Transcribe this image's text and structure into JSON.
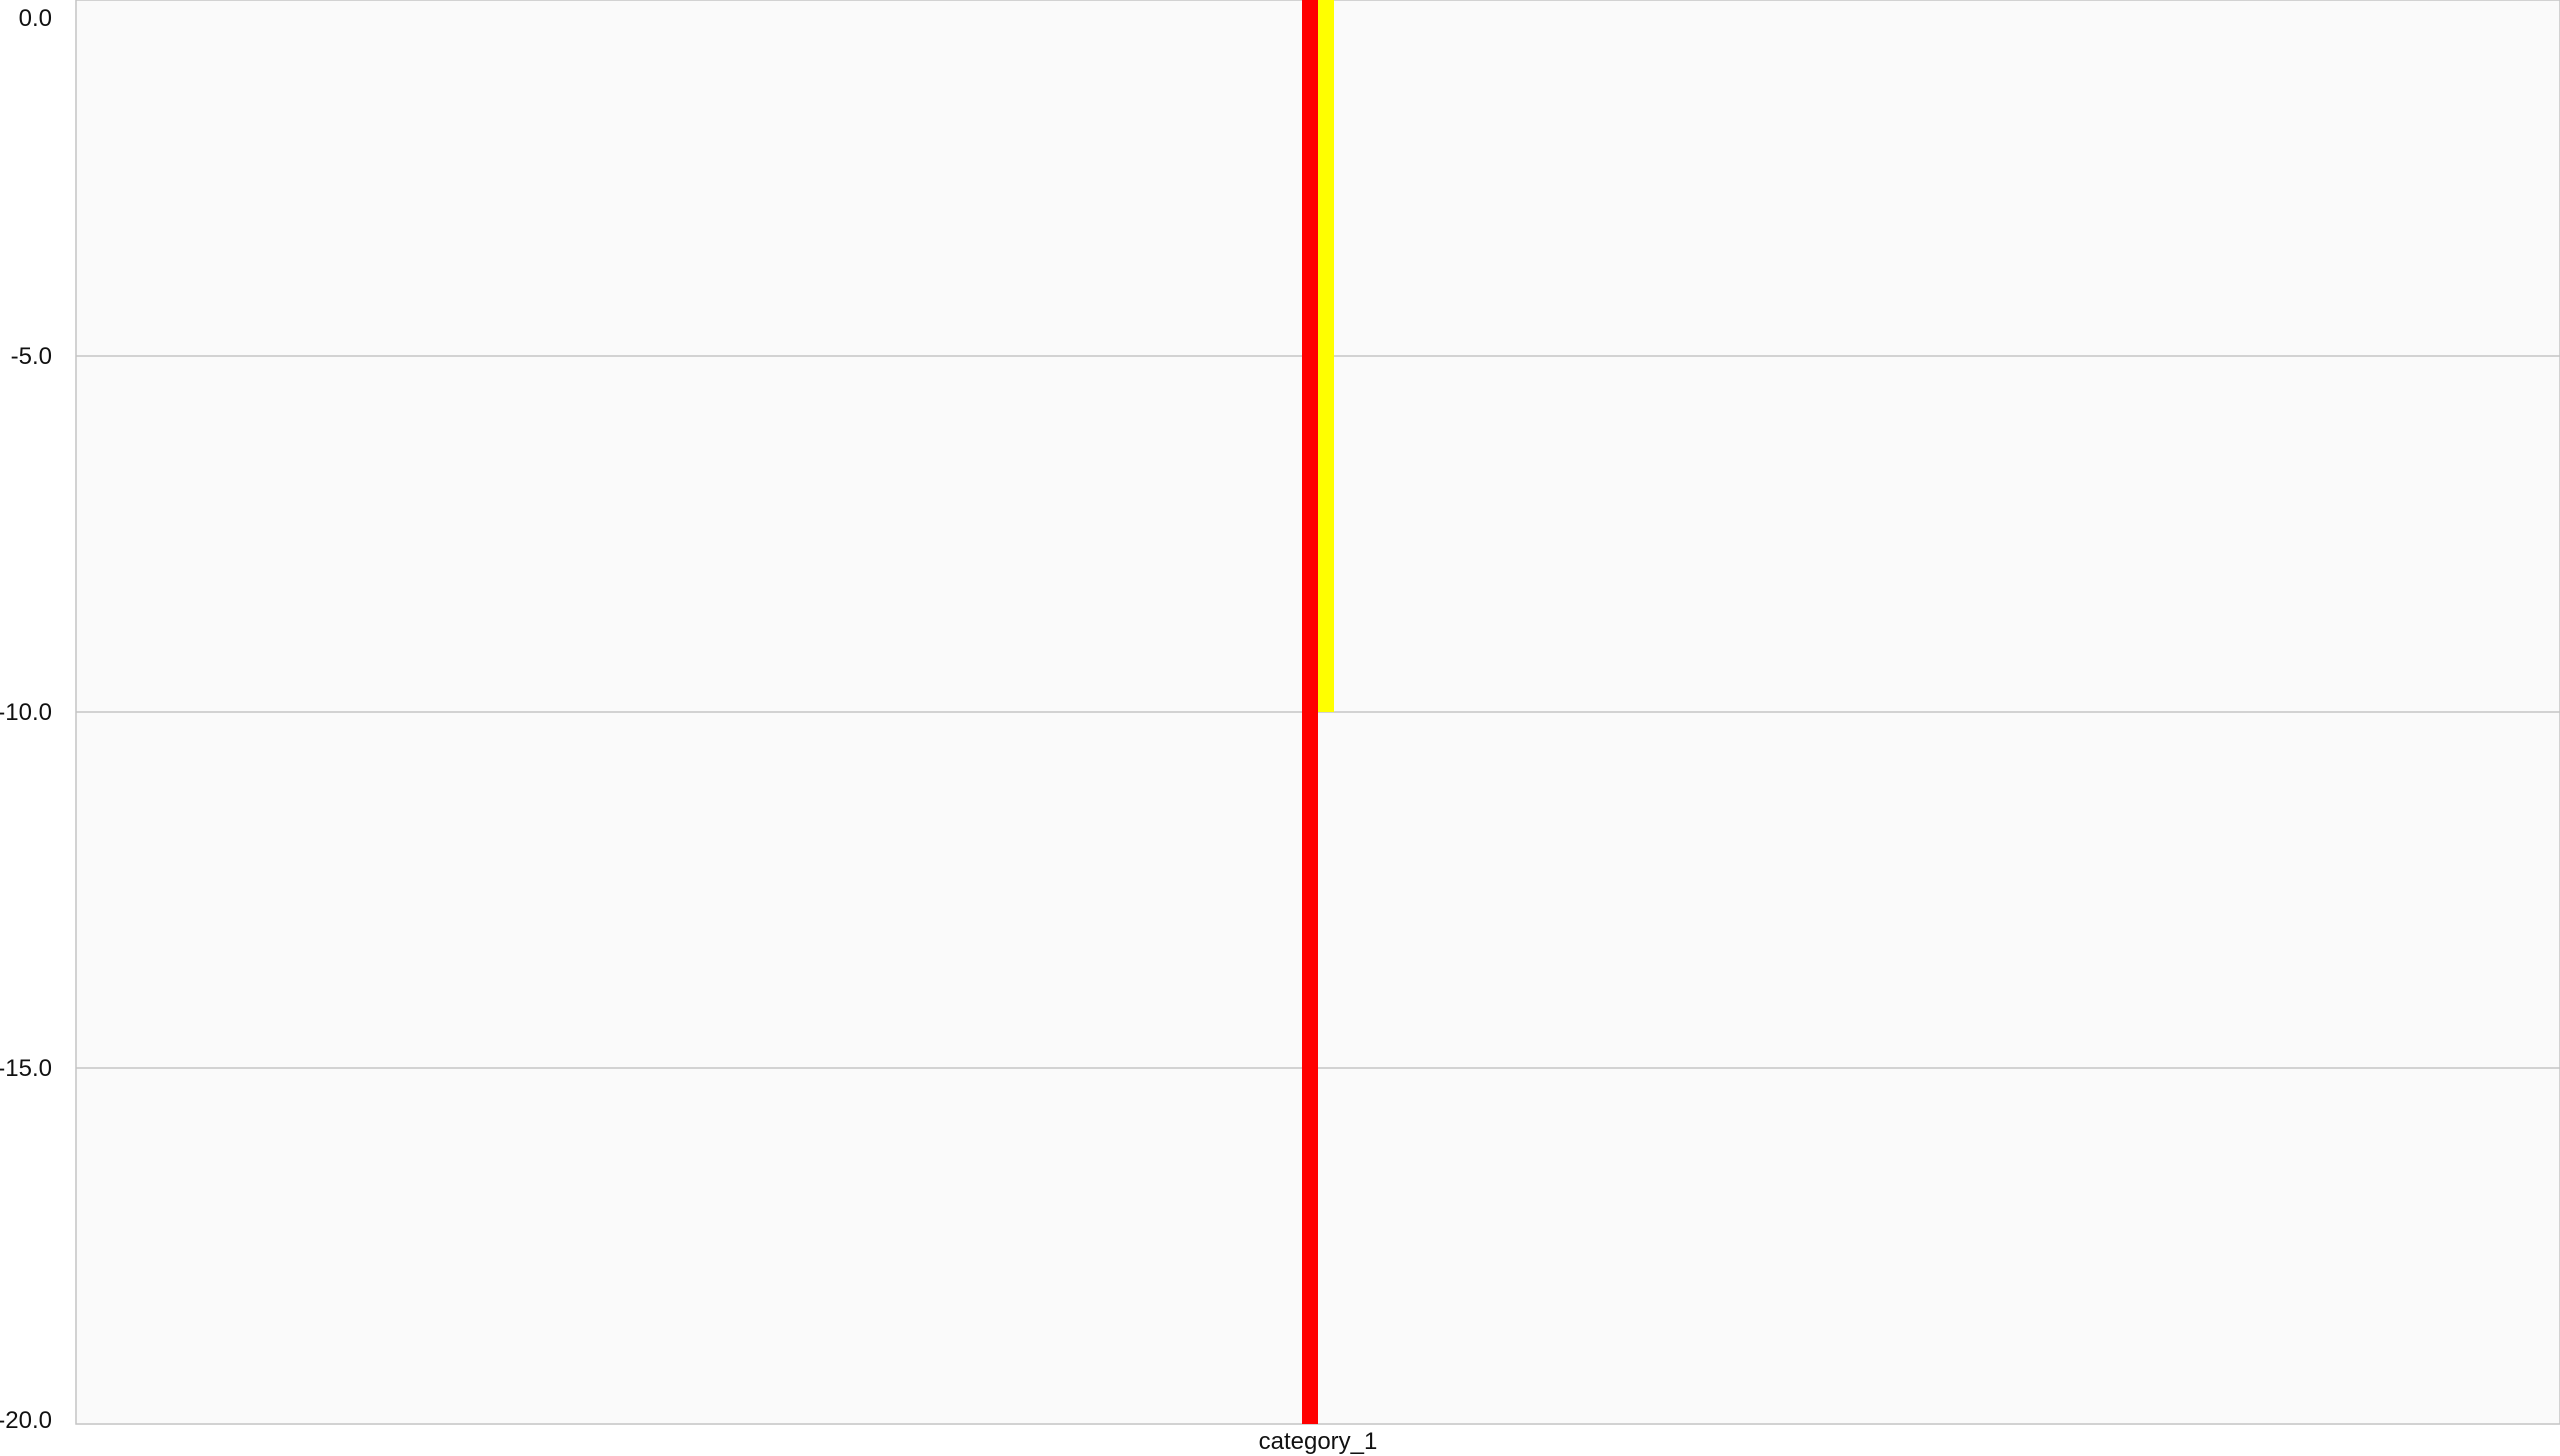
{
  "chart_data": {
    "type": "bar",
    "categories": [
      "category_1"
    ],
    "series": [
      {
        "values": [
          -20.0
        ],
        "color": "#ff0000"
      },
      {
        "values": [
          -10.0
        ],
        "color": "#ffff00"
      }
    ],
    "ylim": [
      -20.0,
      0.0
    ],
    "yticks": [
      "0.0",
      "-5.0",
      "-10.0",
      "-15.0",
      "-20.0"
    ],
    "ytick_values": [
      0,
      -5,
      -10,
      -15,
      -20
    ],
    "grid": true,
    "legend": "none",
    "plot_background": "#fafafa",
    "grid_color": "#c4c4c4"
  }
}
